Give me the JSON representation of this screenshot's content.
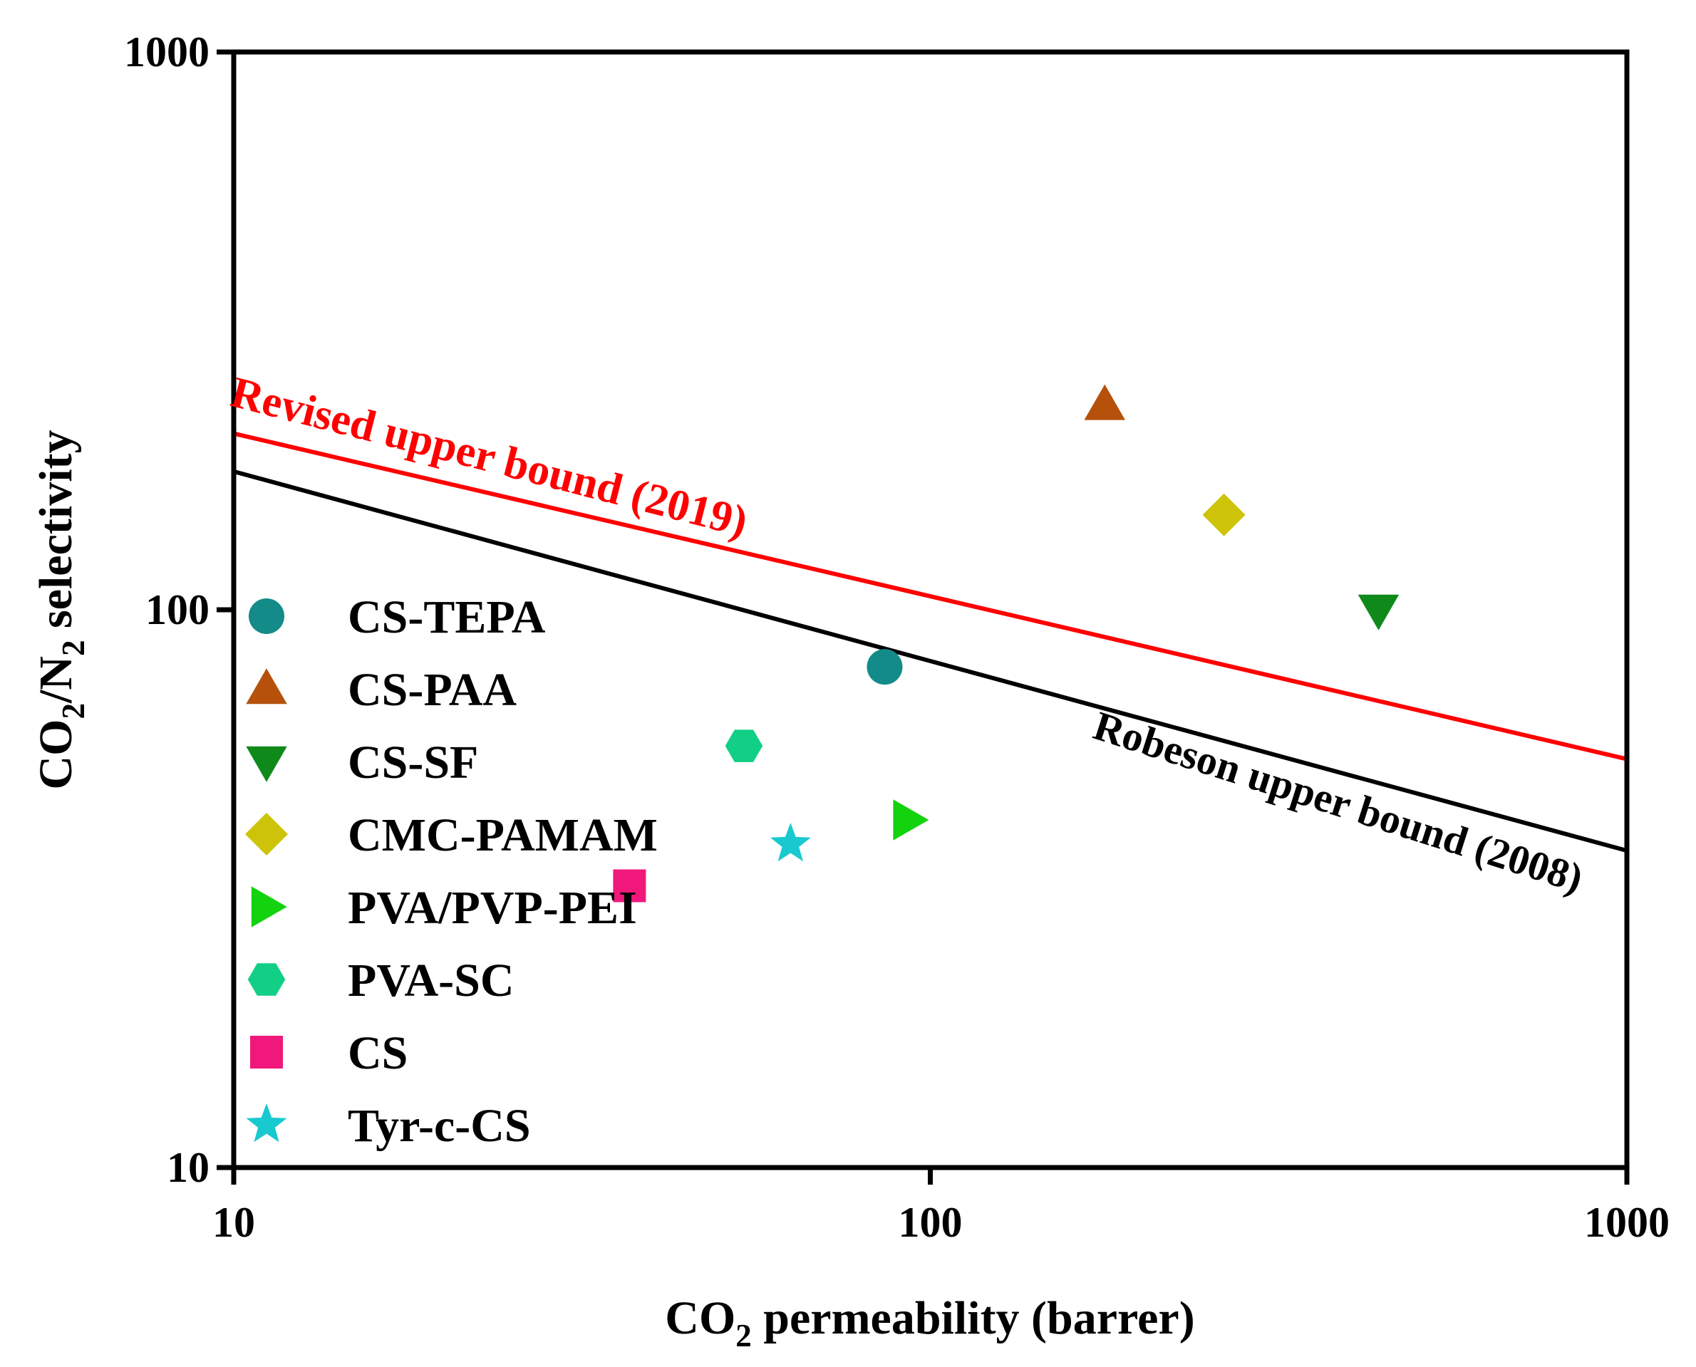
{
  "chart_data": {
    "type": "scatter",
    "title": "",
    "xlabel": "CO2 permeability (barrer)",
    "ylabel": "CO2/N2 selectivity",
    "xscale": "log",
    "yscale": "log",
    "xlim": [
      10,
      1000
    ],
    "ylim": [
      10,
      1000
    ],
    "xticks": [
      10,
      100,
      1000
    ],
    "yticks": [
      10,
      100,
      1000
    ],
    "xtick_labels": [
      "10",
      "100",
      "1000"
    ],
    "ytick_labels": [
      "10",
      "100",
      "1000"
    ],
    "grid": false,
    "legend_position": "left",
    "series": [
      {
        "name": "CS-TEPA",
        "marker": "circle",
        "color": "#138b88",
        "x": 86,
        "y": 79
      },
      {
        "name": "CS-PAA",
        "marker": "triangle-up",
        "color": "#b5510b",
        "x": 178,
        "y": 233
      },
      {
        "name": "CS-SF",
        "marker": "triangle-down",
        "color": "#0f8a1a",
        "x": 440,
        "y": 100
      },
      {
        "name": "CMC-PAMAM",
        "marker": "diamond",
        "color": "#cdc40a",
        "x": 264,
        "y": 148
      },
      {
        "name": "PVA/PVP-PEI",
        "marker": "triangle-right",
        "color": "#13d30f",
        "x": 93,
        "y": 42
      },
      {
        "name": "PVA-SC",
        "marker": "hexagon",
        "color": "#12cf86",
        "x": 54,
        "y": 57
      },
      {
        "name": "CS",
        "marker": "square",
        "color": "#f0187a",
        "x": 37,
        "y": 32
      },
      {
        "name": "Tyr-c-CS",
        "marker": "star",
        "color": "#18c9cf",
        "x": 63,
        "y": 38
      }
    ],
    "lines": [
      {
        "name": "Revised upper bound (2019)",
        "color": "#ff0000",
        "x": [
          10,
          1000
        ],
        "y": [
          207,
          54
        ]
      },
      {
        "name": "Robeson upper bound (2008)",
        "color": "#000000",
        "x": [
          10,
          1000
        ],
        "y": [
          177,
          37
        ]
      }
    ],
    "annotations": [
      {
        "text": "Revised upper bound (2019)",
        "color": "#ff0000"
      },
      {
        "text": "Robeson upper bound (2008)",
        "color": "#000000"
      }
    ]
  }
}
